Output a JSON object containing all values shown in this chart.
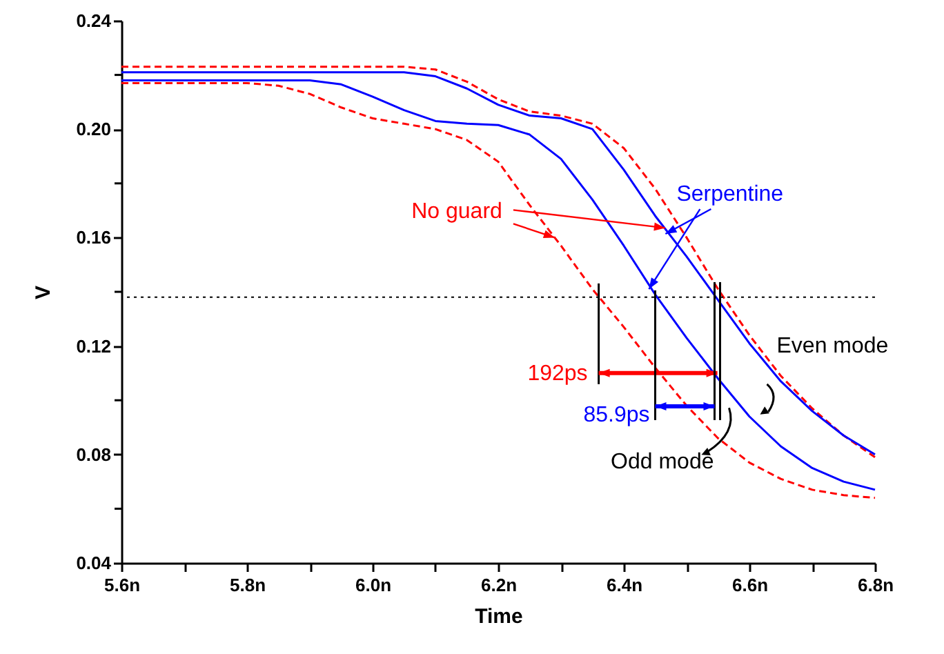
{
  "chart_data": {
    "type": "line",
    "xlabel": "Time",
    "ylabel": "V",
    "xlim": [
      5.6,
      6.8
    ],
    "xticks": [
      {
        "value": 5.6,
        "label": "5.6n"
      },
      {
        "value": 5.7,
        "label": null
      },
      {
        "value": 5.8,
        "label": "5.8n"
      },
      {
        "value": 5.9,
        "label": null
      },
      {
        "value": 6.0,
        "label": "6.0n"
      },
      {
        "value": 6.1,
        "label": null
      },
      {
        "value": 6.2,
        "label": "6.2n"
      },
      {
        "value": 6.3,
        "label": null
      },
      {
        "value": 6.4,
        "label": "6.4n"
      },
      {
        "value": 6.5,
        "label": null
      },
      {
        "value": 6.6,
        "label": "6.6n"
      },
      {
        "value": 6.7,
        "label": null
      },
      {
        "value": 6.8,
        "label": "6.8n"
      }
    ],
    "ylim": [
      0.04,
      0.24
    ],
    "yticks": [
      {
        "value": 0.04,
        "label": "0.04"
      },
      {
        "value": 0.06,
        "label": null
      },
      {
        "value": 0.08,
        "label": "0.08"
      },
      {
        "value": 0.1,
        "label": null
      },
      {
        "value": 0.12,
        "label": "0.12"
      },
      {
        "value": 0.14,
        "label": null
      },
      {
        "value": 0.16,
        "label": "0.16"
      },
      {
        "value": 0.18,
        "label": null
      },
      {
        "value": 0.2,
        "label": "0.20"
      },
      {
        "value": 0.22,
        "label": null
      },
      {
        "value": 0.24,
        "label": "0.24"
      }
    ],
    "x": [
      5.6,
      5.8,
      5.85,
      5.9,
      5.95,
      6.0,
      6.05,
      6.1,
      6.15,
      6.2,
      6.25,
      6.3,
      6.35,
      6.4,
      6.45,
      6.5,
      6.55,
      6.6,
      6.65,
      6.7,
      6.75,
      6.8
    ],
    "series": [
      {
        "color": "#ff0000",
        "line_style": "dashed",
        "values": [
          0.223,
          0.223,
          0.223,
          0.223,
          0.223,
          0.223,
          0.223,
          0.222,
          0.2175,
          0.211,
          0.2065,
          0.205,
          0.202,
          0.193,
          0.178,
          0.16,
          0.141,
          0.124,
          0.109,
          0.097,
          0.087,
          0.079
        ]
      },
      {
        "color": "#0000ff",
        "line_style": "solid",
        "values": [
          0.221,
          0.221,
          0.221,
          0.221,
          0.221,
          0.221,
          0.221,
          0.2195,
          0.215,
          0.209,
          0.205,
          0.204,
          0.2,
          0.185,
          0.168,
          0.153,
          0.137,
          0.121,
          0.107,
          0.096,
          0.087,
          0.08
        ]
      },
      {
        "color": "#0000ff",
        "line_style": "solid",
        "values": [
          0.218,
          0.218,
          0.218,
          0.218,
          0.2165,
          0.212,
          0.207,
          0.203,
          0.202,
          0.2015,
          0.198,
          0.189,
          0.174,
          0.157,
          0.139,
          0.123,
          0.108,
          0.094,
          0.083,
          0.075,
          0.07,
          0.067
        ]
      },
      {
        "color": "#ff0000",
        "line_style": "dashed",
        "values": [
          0.217,
          0.217,
          0.216,
          0.213,
          0.208,
          0.204,
          0.202,
          0.2,
          0.196,
          0.188,
          0.172,
          0.157,
          0.141,
          0.127,
          0.112,
          0.098,
          0.086,
          0.077,
          0.071,
          0.067,
          0.065,
          0.064
        ]
      }
    ],
    "ref_lines": [
      {
        "axis": "y",
        "value": 0.138,
        "color": "#000000",
        "line_style": "dotted"
      }
    ],
    "annotations": [
      {
        "text": "No guard",
        "x": 6.29,
        "y": 0.16
      },
      {
        "text": "Serpentine",
        "x": 6.44,
        "y": 0.141
      },
      {
        "text": "Even mode",
        "x": 6.65,
        "y": 0.109
      },
      {
        "text": "Odd mode",
        "x": 6.55,
        "y": 0.086
      },
      {
        "text": "192ps",
        "x": 6.36,
        "y": 0.138
      },
      {
        "text": "85.9ps",
        "x": 6.45,
        "y": 0.139
      }
    ]
  }
}
